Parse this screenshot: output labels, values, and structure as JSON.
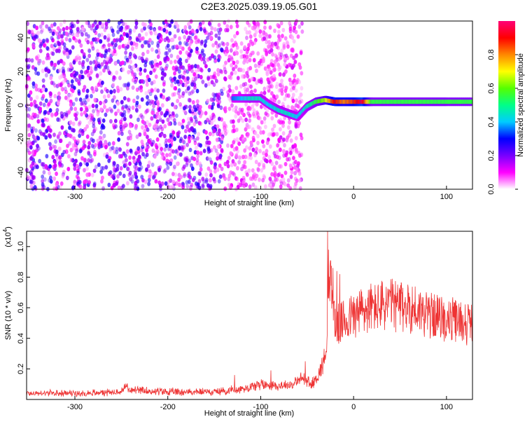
{
  "title": "C2E3.2025.039.19.05.G01",
  "colors": {
    "snr_line": "#ee3333",
    "background": "#ffffff",
    "axis": "#000000"
  },
  "chart_data": [
    {
      "type": "heatmap",
      "xlabel": "Height of straight line (km)",
      "ylabel": "Frequency (Hz)",
      "xlim": [
        -352,
        128
      ],
      "ylim": [
        -50,
        50
      ],
      "xticks": [
        -300,
        -200,
        -100,
        0,
        100
      ],
      "xtick_labels": [
        "-300",
        "-200",
        "-100",
        "0",
        "100"
      ],
      "yticks": [
        -40,
        -20,
        0,
        20,
        40
      ],
      "ytick_labels": [
        "-40",
        "-20",
        "0",
        "20",
        "40"
      ],
      "colorbar": {
        "label": "Normalized spectral amplitude",
        "range": [
          0,
          1
        ],
        "ticks": [
          0.0,
          0.2,
          0.4,
          0.6,
          0.8
        ],
        "tick_labels": [
          "0.0",
          "0.2",
          "0.4",
          "0.6",
          "0.8"
        ],
        "colormap": [
          "#ffffff",
          "#ff00ff",
          "#7700ff",
          "#0000ff",
          "#00ccff",
          "#00ff88",
          "#55ff00",
          "#ffff00",
          "#ff8800",
          "#ff0000",
          "#ff0077"
        ]
      },
      "signal_track": [
        {
          "x": -130,
          "f": 4,
          "amp": 0.35
        },
        {
          "x": -120,
          "f": 4,
          "amp": 0.4
        },
        {
          "x": -110,
          "f": 4,
          "amp": 0.45
        },
        {
          "x": -100,
          "f": 4,
          "amp": 0.45
        },
        {
          "x": -90,
          "f": 0,
          "amp": 0.4
        },
        {
          "x": -80,
          "f": -3,
          "amp": 0.45
        },
        {
          "x": -70,
          "f": -5,
          "amp": 0.45
        },
        {
          "x": -60,
          "f": -7,
          "amp": 0.4
        },
        {
          "x": -50,
          "f": -1,
          "amp": 0.45
        },
        {
          "x": -40,
          "f": 2,
          "amp": 0.55
        },
        {
          "x": -30,
          "f": 3,
          "amp": 0.65
        },
        {
          "x": -20,
          "f": 2,
          "amp": 0.9
        },
        {
          "x": -10,
          "f": 2,
          "amp": 0.8
        },
        {
          "x": 0,
          "f": 2,
          "amp": 0.85
        },
        {
          "x": 10,
          "f": 2,
          "amp": 0.95
        },
        {
          "x": 20,
          "f": 2,
          "amp": 0.55
        },
        {
          "x": 40,
          "f": 2,
          "amp": 0.55
        },
        {
          "x": 60,
          "f": 2,
          "amp": 0.55
        },
        {
          "x": 80,
          "f": 2,
          "amp": 0.55
        },
        {
          "x": 100,
          "f": 2,
          "amp": 0.55
        },
        {
          "x": 128,
          "f": 2,
          "amp": 0.55
        }
      ],
      "noise_field": {
        "x_range": [
          -352,
          -55
        ],
        "f_range": [
          -50,
          50
        ],
        "amp_range": [
          0.0,
          0.25
        ]
      }
    },
    {
      "type": "line",
      "xlabel": "Height of straight line (km)",
      "ylabel": "SNR (10 * v/v)",
      "y_scale_note": "(x10",
      "y_scale_exponent": "4",
      "y_scale_suffix": ")",
      "xlim": [
        -352,
        128
      ],
      "ylim": [
        0,
        1.1
      ],
      "xticks": [
        -300,
        -200,
        -100,
        0,
        100
      ],
      "xtick_labels": [
        "-300",
        "-200",
        "-100",
        "0",
        "100"
      ],
      "yticks": [
        0.2,
        0.4,
        0.6,
        0.8,
        1.0
      ],
      "ytick_labels": [
        "0.2",
        "0.4",
        "0.6",
        "0.8",
        "1.0"
      ],
      "series": [
        {
          "color": "#ee3333",
          "envelope": {
            "x": [
              -352,
              -300,
              -250,
              -245,
              -240,
              -200,
              -150,
              -120,
              -100,
              -80,
              -65,
              -55,
              -50,
              -45,
              -40,
              -35,
              -30,
              -28,
              -25,
              -22,
              -20,
              -15,
              -10,
              0,
              10,
              20,
              40,
              60,
              80,
              100,
              128
            ],
            "y": [
              0.04,
              0.04,
              0.05,
              0.09,
              0.06,
              0.05,
              0.05,
              0.07,
              0.1,
              0.09,
              0.1,
              0.14,
              0.12,
              0.1,
              0.14,
              0.2,
              0.3,
              0.55,
              0.75,
              0.62,
              0.5,
              0.48,
              0.52,
              0.55,
              0.58,
              0.6,
              0.62,
              0.6,
              0.56,
              0.52,
              0.5
            ]
          },
          "spikes": [
            {
              "x": -128,
              "y": 0.16
            },
            {
              "x": -89,
              "y": 0.19
            },
            {
              "x": -52,
              "y": 0.25
            },
            {
              "x": -28,
              "y": 1.1
            },
            {
              "x": -27,
              "y": 0.98
            },
            {
              "x": -25,
              "y": 0.91
            },
            {
              "x": -22,
              "y": 0.86
            },
            {
              "x": -18,
              "y": 0.84
            },
            {
              "x": -15,
              "y": 0.82
            },
            {
              "x": 8,
              "y": 0.72
            },
            {
              "x": 40,
              "y": 0.7
            }
          ]
        }
      ]
    }
  ]
}
